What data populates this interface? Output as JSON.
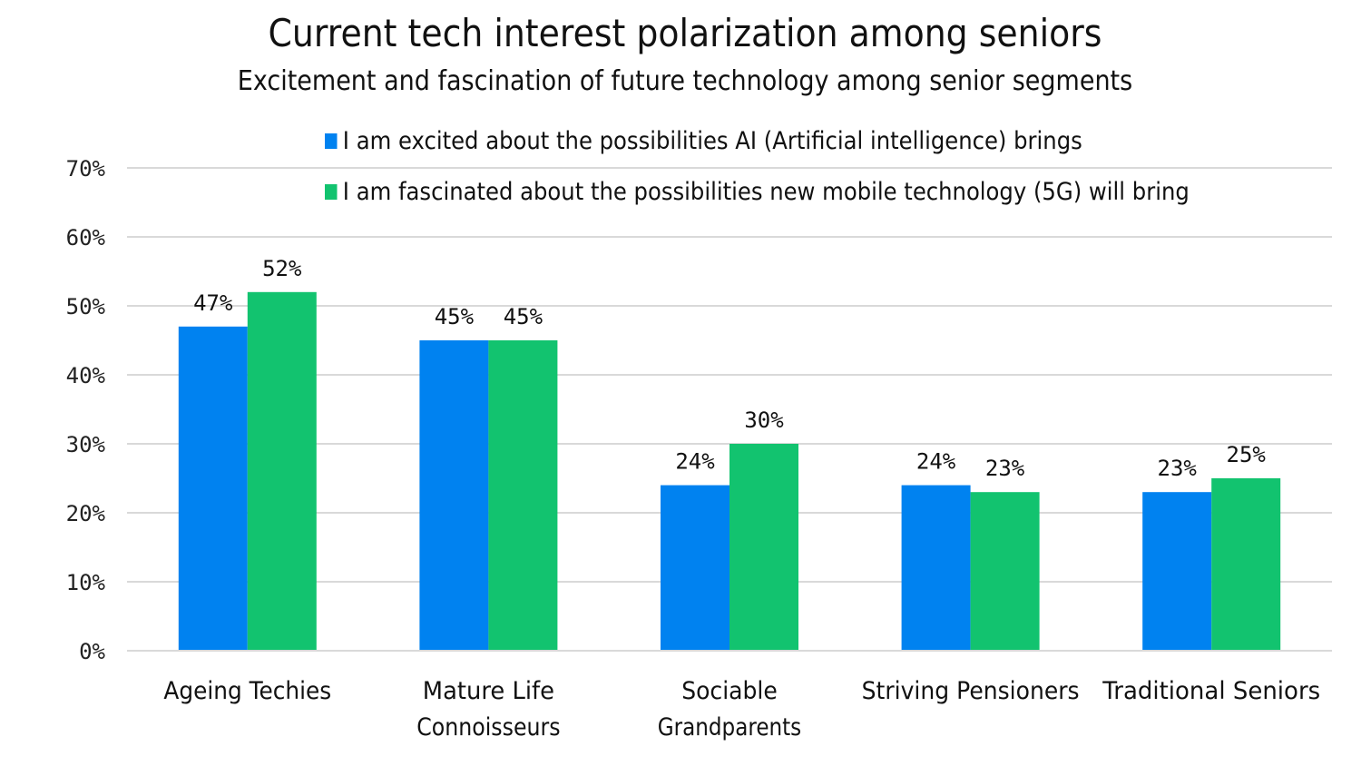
{
  "chart_data": {
    "type": "bar",
    "title": "Current tech interest polarization among seniors",
    "subtitle": "Excitement and fascination of future technology among senior segments",
    "categories": [
      [
        "Ageing Techies"
      ],
      [
        "Mature Life",
        "Connoisseurs"
      ],
      [
        "Sociable",
        "Grandparents"
      ],
      [
        "Striving Pensioners"
      ],
      [
        "Traditional Seniors"
      ]
    ],
    "series": [
      {
        "name": "I am excited about the possibilities AI (Artificial intelligence) brings",
        "color": "#0082F0",
        "values": [
          47,
          45,
          24,
          24,
          23
        ]
      },
      {
        "name": "I am fascinated about the possibilities new mobile technology (5G) will bring",
        "color": "#12C36F",
        "values": [
          52,
          45,
          30,
          23,
          25
        ]
      }
    ],
    "ylim": [
      0,
      70
    ],
    "yticks": [
      "0%",
      "10%",
      "20%",
      "30%",
      "40%",
      "50%",
      "60%",
      "70%"
    ],
    "value_suffix": "%",
    "grid": true,
    "legend_placement": "top"
  }
}
